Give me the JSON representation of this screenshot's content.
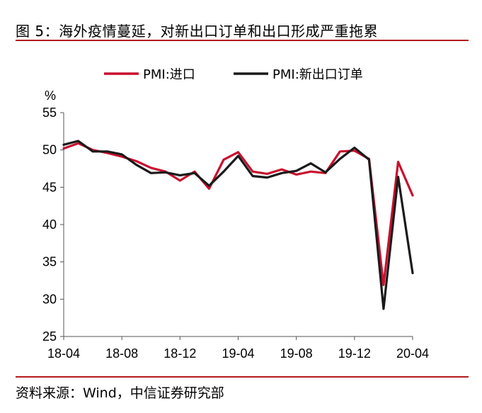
{
  "figure": {
    "title": "图 5：海外疫情蔓延，对新出口订单和出口形成严重拖累",
    "source": "资料来源：Wind，中信证券研究部"
  },
  "colors": {
    "rule": "#b31b1b",
    "series_import": "#c8102e",
    "series_export_orders": "#1a1a1a"
  },
  "chart_data": {
    "type": "line",
    "unit": "%",
    "ylim": [
      25,
      55
    ],
    "yticks": [
      25,
      30,
      35,
      40,
      45,
      50,
      55
    ],
    "xtick_labels": [
      "18-04",
      "18-08",
      "18-12",
      "19-04",
      "19-08",
      "19-12",
      "20-04"
    ],
    "x": [
      "18-04",
      "18-05",
      "18-06",
      "18-07",
      "18-08",
      "18-09",
      "18-10",
      "18-11",
      "18-12",
      "19-01",
      "19-02",
      "19-03",
      "19-04",
      "19-05",
      "19-06",
      "19-07",
      "19-08",
      "19-09",
      "19-10",
      "19-11",
      "19-12",
      "20-01",
      "20-02",
      "20-03",
      "20-04"
    ],
    "grid": false,
    "legend_position": "top",
    "series": [
      {
        "name": "PMI:进口",
        "color_key": "series_import",
        "values": [
          50.2,
          50.9,
          50.0,
          49.6,
          49.1,
          48.5,
          47.6,
          47.1,
          45.9,
          47.1,
          44.8,
          48.7,
          49.7,
          47.1,
          46.8,
          47.4,
          46.7,
          47.1,
          46.9,
          49.8,
          49.9,
          48.8,
          31.9,
          48.4,
          43.9
        ]
      },
      {
        "name": "PMI:新出口订单",
        "color_key": "series_export_orders",
        "values": [
          50.7,
          51.2,
          49.8,
          49.8,
          49.4,
          48.0,
          46.9,
          47.0,
          46.6,
          46.9,
          45.2,
          47.1,
          49.2,
          46.5,
          46.3,
          46.9,
          47.2,
          48.2,
          47.0,
          48.8,
          50.3,
          48.7,
          28.7,
          46.4,
          33.5
        ]
      }
    ]
  }
}
